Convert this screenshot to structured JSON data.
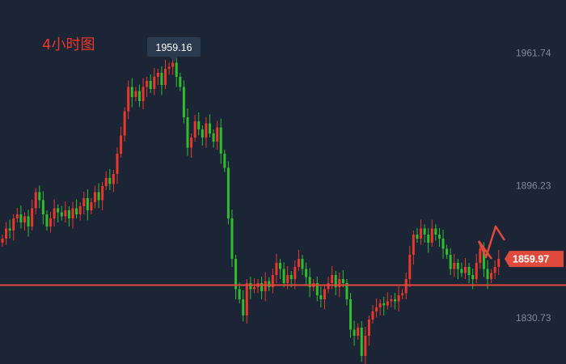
{
  "chart_data": {
    "type": "candlestick",
    "title": "4小时图",
    "ylim": [
      1812,
      1972
    ],
    "y_ticks": [
      "1961.74",
      "1896.23",
      "1830.73"
    ],
    "y_tick_values": [
      1961.74,
      1896.23,
      1830.73
    ],
    "peak_label": "1959.16",
    "peak_value": 1959.16,
    "current_label": "1859.97",
    "current_value": 1859.97,
    "level_line_value": 1847,
    "colors": {
      "up": "#e8372b",
      "down": "#2fbd2f",
      "background": "#1c2536",
      "level": "#e04a3c",
      "tooltip": "#2c3a50"
    },
    "close_series": [
      1870,
      1875,
      1874,
      1880,
      1882,
      1878,
      1881,
      1876,
      1885,
      1893,
      1889,
      1882,
      1876,
      1880,
      1885,
      1883,
      1881,
      1884,
      1880,
      1885,
      1882,
      1886,
      1890,
      1884,
      1888,
      1893,
      1889,
      1896,
      1900,
      1897,
      1902,
      1912,
      1921,
      1933,
      1945,
      1940,
      1943,
      1938,
      1945,
      1948,
      1944,
      1950,
      1952,
      1946,
      1954,
      1955,
      1957,
      1950,
      1945,
      1930,
      1915,
      1920,
      1928,
      1924,
      1920,
      1927,
      1922,
      1918,
      1925,
      1912,
      1905,
      1880,
      1860,
      1845,
      1840,
      1832,
      1848,
      1845,
      1846,
      1848,
      1844,
      1849,
      1846,
      1852,
      1858,
      1855,
      1848,
      1852,
      1850,
      1856,
      1860,
      1855,
      1851,
      1846,
      1848,
      1842,
      1840,
      1845,
      1848,
      1852,
      1846,
      1850,
      1848,
      1840,
      1825,
      1822,
      1826,
      1812,
      1822,
      1830,
      1834,
      1836,
      1838,
      1837,
      1839,
      1840,
      1839,
      1842,
      1843,
      1850,
      1862,
      1872,
      1870,
      1875,
      1872,
      1868,
      1875,
      1872,
      1870,
      1865,
      1862,
      1855,
      1858,
      1855,
      1853,
      1856,
      1852,
      1850,
      1858,
      1865,
      1855,
      1850,
      1853,
      1856,
      1860
    ]
  }
}
